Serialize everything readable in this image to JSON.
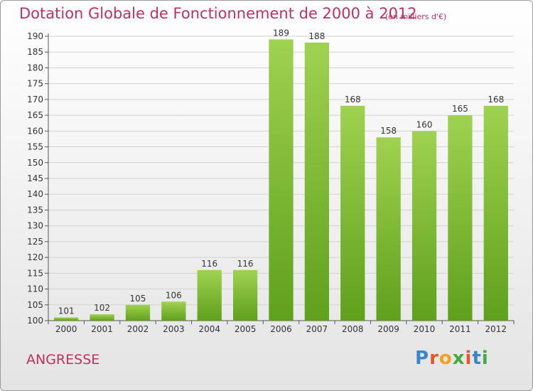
{
  "title": "Dotation Globale de Fonctionnement de 2000 à 2012",
  "subtitle": "(en milliers d'€)",
  "place": "ANGRESSE",
  "logo": {
    "text": "Proxiti",
    "colors": [
      "#3a86c8",
      "#e8552a",
      "#f2a31a",
      "#44a844",
      "#e8552a",
      "#3a86c8",
      "#44a844"
    ]
  },
  "chart_data": {
    "type": "bar",
    "categories": [
      "2000",
      "2001",
      "2002",
      "2003",
      "2004",
      "2005",
      "2006",
      "2007",
      "2008",
      "2009",
      "2010",
      "2011",
      "2012"
    ],
    "values": [
      101,
      102,
      105,
      106,
      116,
      116,
      189,
      188,
      168,
      158,
      160,
      165,
      168
    ],
    "ylim": [
      100,
      190
    ],
    "yticks": [
      100,
      105,
      110,
      115,
      120,
      125,
      130,
      135,
      140,
      145,
      150,
      155,
      160,
      165,
      170,
      175,
      180,
      185,
      190
    ],
    "grid": true,
    "bar_color_top": "#9fd250",
    "bar_color_bottom": "#5fa01c"
  }
}
